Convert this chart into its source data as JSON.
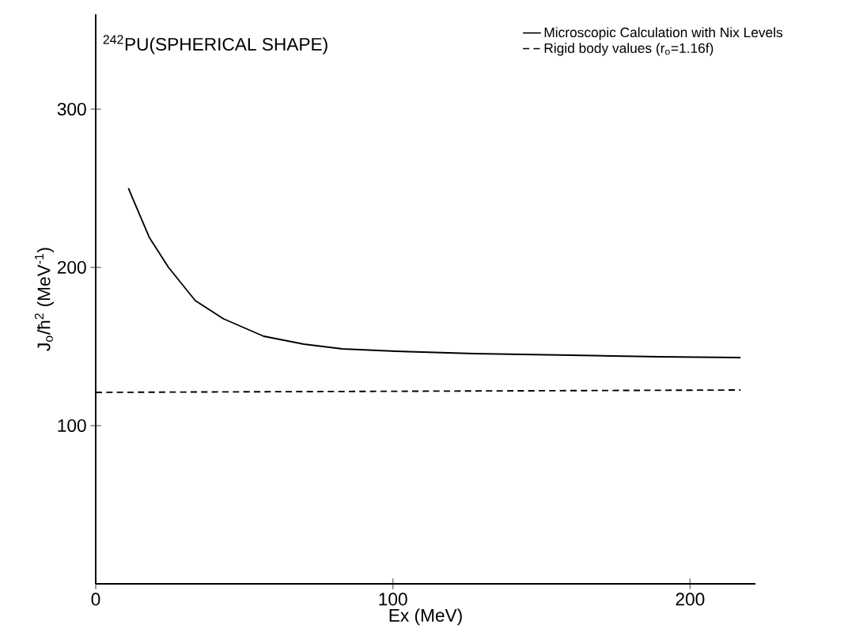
{
  "chart_data": {
    "type": "line",
    "xlabel": "Ex (MeV)",
    "ylabel": "J$_{o}$/ħ$^{2}$ (MeV$^{-1}$)",
    "annotations": [
      "$^{242}$PU(SPHERICAL SHAPE)"
    ],
    "xlim": [
      0,
      222
    ],
    "ylim": [
      0,
      360
    ],
    "xticks": [
      0,
      100,
      200
    ],
    "yticks": [
      100,
      200,
      300
    ],
    "grid": false,
    "legend": "top right",
    "marker": "none",
    "series": [
      {
        "name": "Microscopic Calculation with Nix Levels",
        "color": "#000000",
        "line_style": "solid",
        "x": [
          11,
          18,
          24.5,
          33.5,
          43,
          56.5,
          70,
          83,
          101,
          127.5,
          160,
          190,
          217
        ],
        "values": [
          250,
          219,
          200,
          179,
          167.5,
          156.5,
          151.5,
          148.5,
          147,
          145.5,
          144.5,
          143.5,
          143
        ]
      },
      {
        "name": "Rigid body values (r$_{o}$=1.16f)",
        "color": "#000000",
        "line_style": "dashed",
        "x": [
          0,
          217
        ],
        "values": [
          121,
          122.5
        ]
      }
    ]
  }
}
